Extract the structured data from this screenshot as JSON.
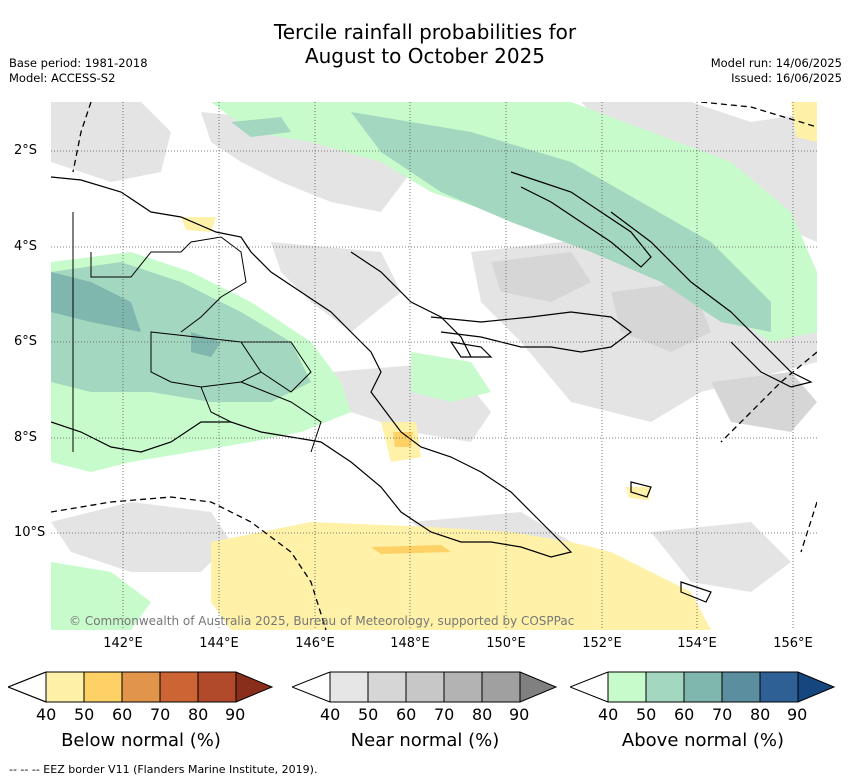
{
  "title_line1": "Tercile rainfall probabilities for",
  "title_line2": "August to October 2025",
  "base_period": "Base period: 1981-2018",
  "model": "Model: ACCESS-S2",
  "model_run": "Model run: 14/06/2025",
  "issued": "Issued: 16/06/2025",
  "copyright": "© Commonwealth of Australia 2025, Bureau of Meteorology, supported by COSPPac",
  "footer": "--  --  -- EEZ border V11 (Flanders Marine Institute, 2019).",
  "lon_ticks": [
    "142°E",
    "144°E",
    "146°E",
    "148°E",
    "150°E",
    "152°E",
    "154°E",
    "156°E"
  ],
  "lat_ticks": [
    "2°S",
    "4°S",
    "6°S",
    "8°S",
    "10°S"
  ],
  "colorbars": [
    {
      "label": "Below normal (%)",
      "ticks": [
        "40",
        "50",
        "60",
        "70",
        "80",
        "90"
      ],
      "colors": [
        "#fff1a8",
        "#fdd166",
        "#e0954a",
        "#cc6533",
        "#b04a2a",
        "#8a2e1c"
      ]
    },
    {
      "label": "Near normal (%)",
      "ticks": [
        "40",
        "50",
        "60",
        "70",
        "80",
        "90"
      ],
      "colors": [
        "#e6e6e6",
        "#d6d6d6",
        "#c7c7c7",
        "#b3b3b3",
        "#a0a0a0",
        "#808080"
      ]
    },
    {
      "label": "Above normal (%)",
      "ticks": [
        "40",
        "50",
        "60",
        "70",
        "80",
        "90"
      ],
      "colors": [
        "#c8fbcb",
        "#a3d7bf",
        "#7fb6ad",
        "#5b8fa0",
        "#2e6096",
        "#15467e"
      ]
    }
  ],
  "colors": {
    "water_background": "#ffffff",
    "grid": "#555555"
  }
}
